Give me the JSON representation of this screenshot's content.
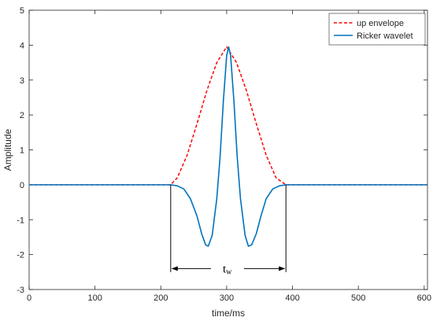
{
  "chart_data": {
    "type": "line",
    "xlabel": "time/ms",
    "ylabel": "Amplitude",
    "xlim": [
      0,
      605
    ],
    "ylim": [
      -3,
      5
    ],
    "xticks": [
      0,
      100,
      200,
      300,
      400,
      500,
      600
    ],
    "yticks": [
      -3,
      -2,
      -1,
      0,
      1,
      2,
      3,
      4,
      5
    ],
    "grid": false,
    "legend_position": "top-right",
    "series": [
      {
        "name": "up envelope",
        "style": "dashed",
        "color": "#ff0000",
        "x": [
          0,
          215,
          225,
          240,
          255,
          270,
          285,
          300,
          315,
          330,
          345,
          360,
          375,
          390,
          605
        ],
        "y": [
          0,
          0,
          0.2,
          0.85,
          1.75,
          2.7,
          3.5,
          3.95,
          3.5,
          2.7,
          1.75,
          0.85,
          0.2,
          0,
          0
        ]
      },
      {
        "name": "Ricker wavelet",
        "style": "solid",
        "color": "#0072bd",
        "x": [
          0,
          215,
          225,
          235,
          245,
          255,
          262,
          268,
          272,
          278,
          285,
          290,
          295,
          300,
          303,
          306,
          311,
          316,
          321,
          328,
          333,
          338,
          345,
          352,
          360,
          370,
          380,
          390,
          605
        ],
        "y": [
          0,
          0,
          -0.03,
          -0.12,
          -0.4,
          -0.9,
          -1.4,
          -1.72,
          -1.76,
          -1.45,
          -0.4,
          0.8,
          2.4,
          3.7,
          3.95,
          3.7,
          2.4,
          0.8,
          -0.4,
          -1.45,
          -1.76,
          -1.72,
          -1.4,
          -0.9,
          -0.4,
          -0.12,
          -0.03,
          0,
          0
        ]
      }
    ],
    "annotation": {
      "label_main": "t",
      "label_sub": "w",
      "x_start": 215,
      "x_end": 390,
      "y": -2.4,
      "line_bottom_y": -2.5
    }
  }
}
